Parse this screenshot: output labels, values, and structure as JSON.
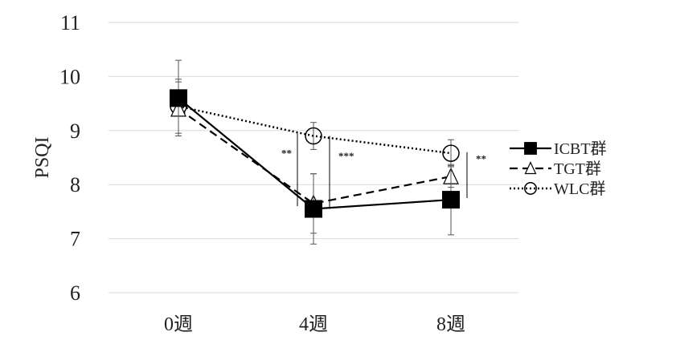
{
  "chart_data": {
    "type": "line",
    "title": "",
    "xlabel": "",
    "ylabel": "PSQI",
    "ylim": [
      6,
      11
    ],
    "yticks": [
      6,
      7,
      8,
      9,
      10,
      11
    ],
    "categories": [
      "0週",
      "4週",
      "8週"
    ],
    "grid": true,
    "legend_position": "right",
    "series": [
      {
        "name": "ICBT群",
        "values": [
          9.6,
          7.55,
          7.72
        ],
        "error": [
          0.7,
          0.65,
          0.65
        ],
        "line_style": "solid",
        "marker": "filled-square",
        "color": "#000000"
      },
      {
        "name": "TGT群",
        "values": [
          9.4,
          7.65,
          8.15
        ],
        "error": [
          0.5,
          0.55,
          0.2
        ],
        "line_style": "dashed",
        "marker": "open-triangle",
        "color": "#000000"
      },
      {
        "name": "WLC群",
        "values": [
          9.45,
          8.9,
          8.58
        ],
        "error": [
          0.5,
          0.25,
          0.25
        ],
        "line_style": "dotted",
        "marker": "open-circle",
        "color": "#000000"
      }
    ],
    "annotations": [
      {
        "text": "**",
        "category_index": 1,
        "side": "left",
        "y_top": 8.95,
        "y_bottom": 7.6
      },
      {
        "text": "***",
        "category_index": 1,
        "side": "right",
        "y_top": 8.9,
        "y_bottom": 7.55
      },
      {
        "text": "**",
        "category_index": 2,
        "side": "right",
        "y_top": 8.6,
        "y_bottom": 7.75
      }
    ]
  }
}
